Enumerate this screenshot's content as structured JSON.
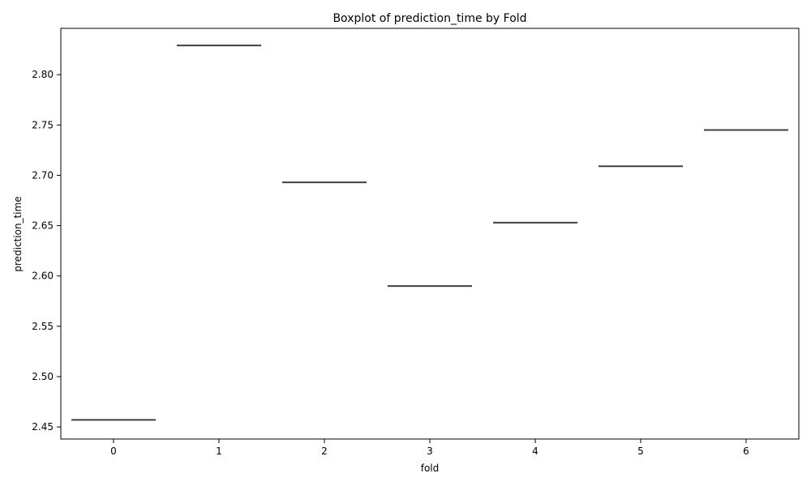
{
  "chart_data": {
    "type": "boxplot",
    "title": "Boxplot of prediction_time by Fold",
    "xlabel": "fold",
    "ylabel": "prediction_time",
    "categories": [
      "0",
      "1",
      "2",
      "3",
      "4",
      "5",
      "6"
    ],
    "values": [
      2.457,
      2.829,
      2.693,
      2.59,
      2.653,
      2.709,
      2.745
    ],
    "ylim": [
      2.438,
      2.846
    ],
    "yticks": [
      2.45,
      2.5,
      2.55,
      2.6,
      2.65,
      2.7,
      2.75,
      2.8
    ],
    "ytick_labels": [
      "2.45",
      "2.50",
      "2.55",
      "2.60",
      "2.65",
      "2.70",
      "2.75",
      "2.80"
    ],
    "grid": false,
    "legend": "none",
    "colors": {
      "median_line": "#3f3f3f",
      "axes": "#000000",
      "background": "#ffffff"
    }
  }
}
